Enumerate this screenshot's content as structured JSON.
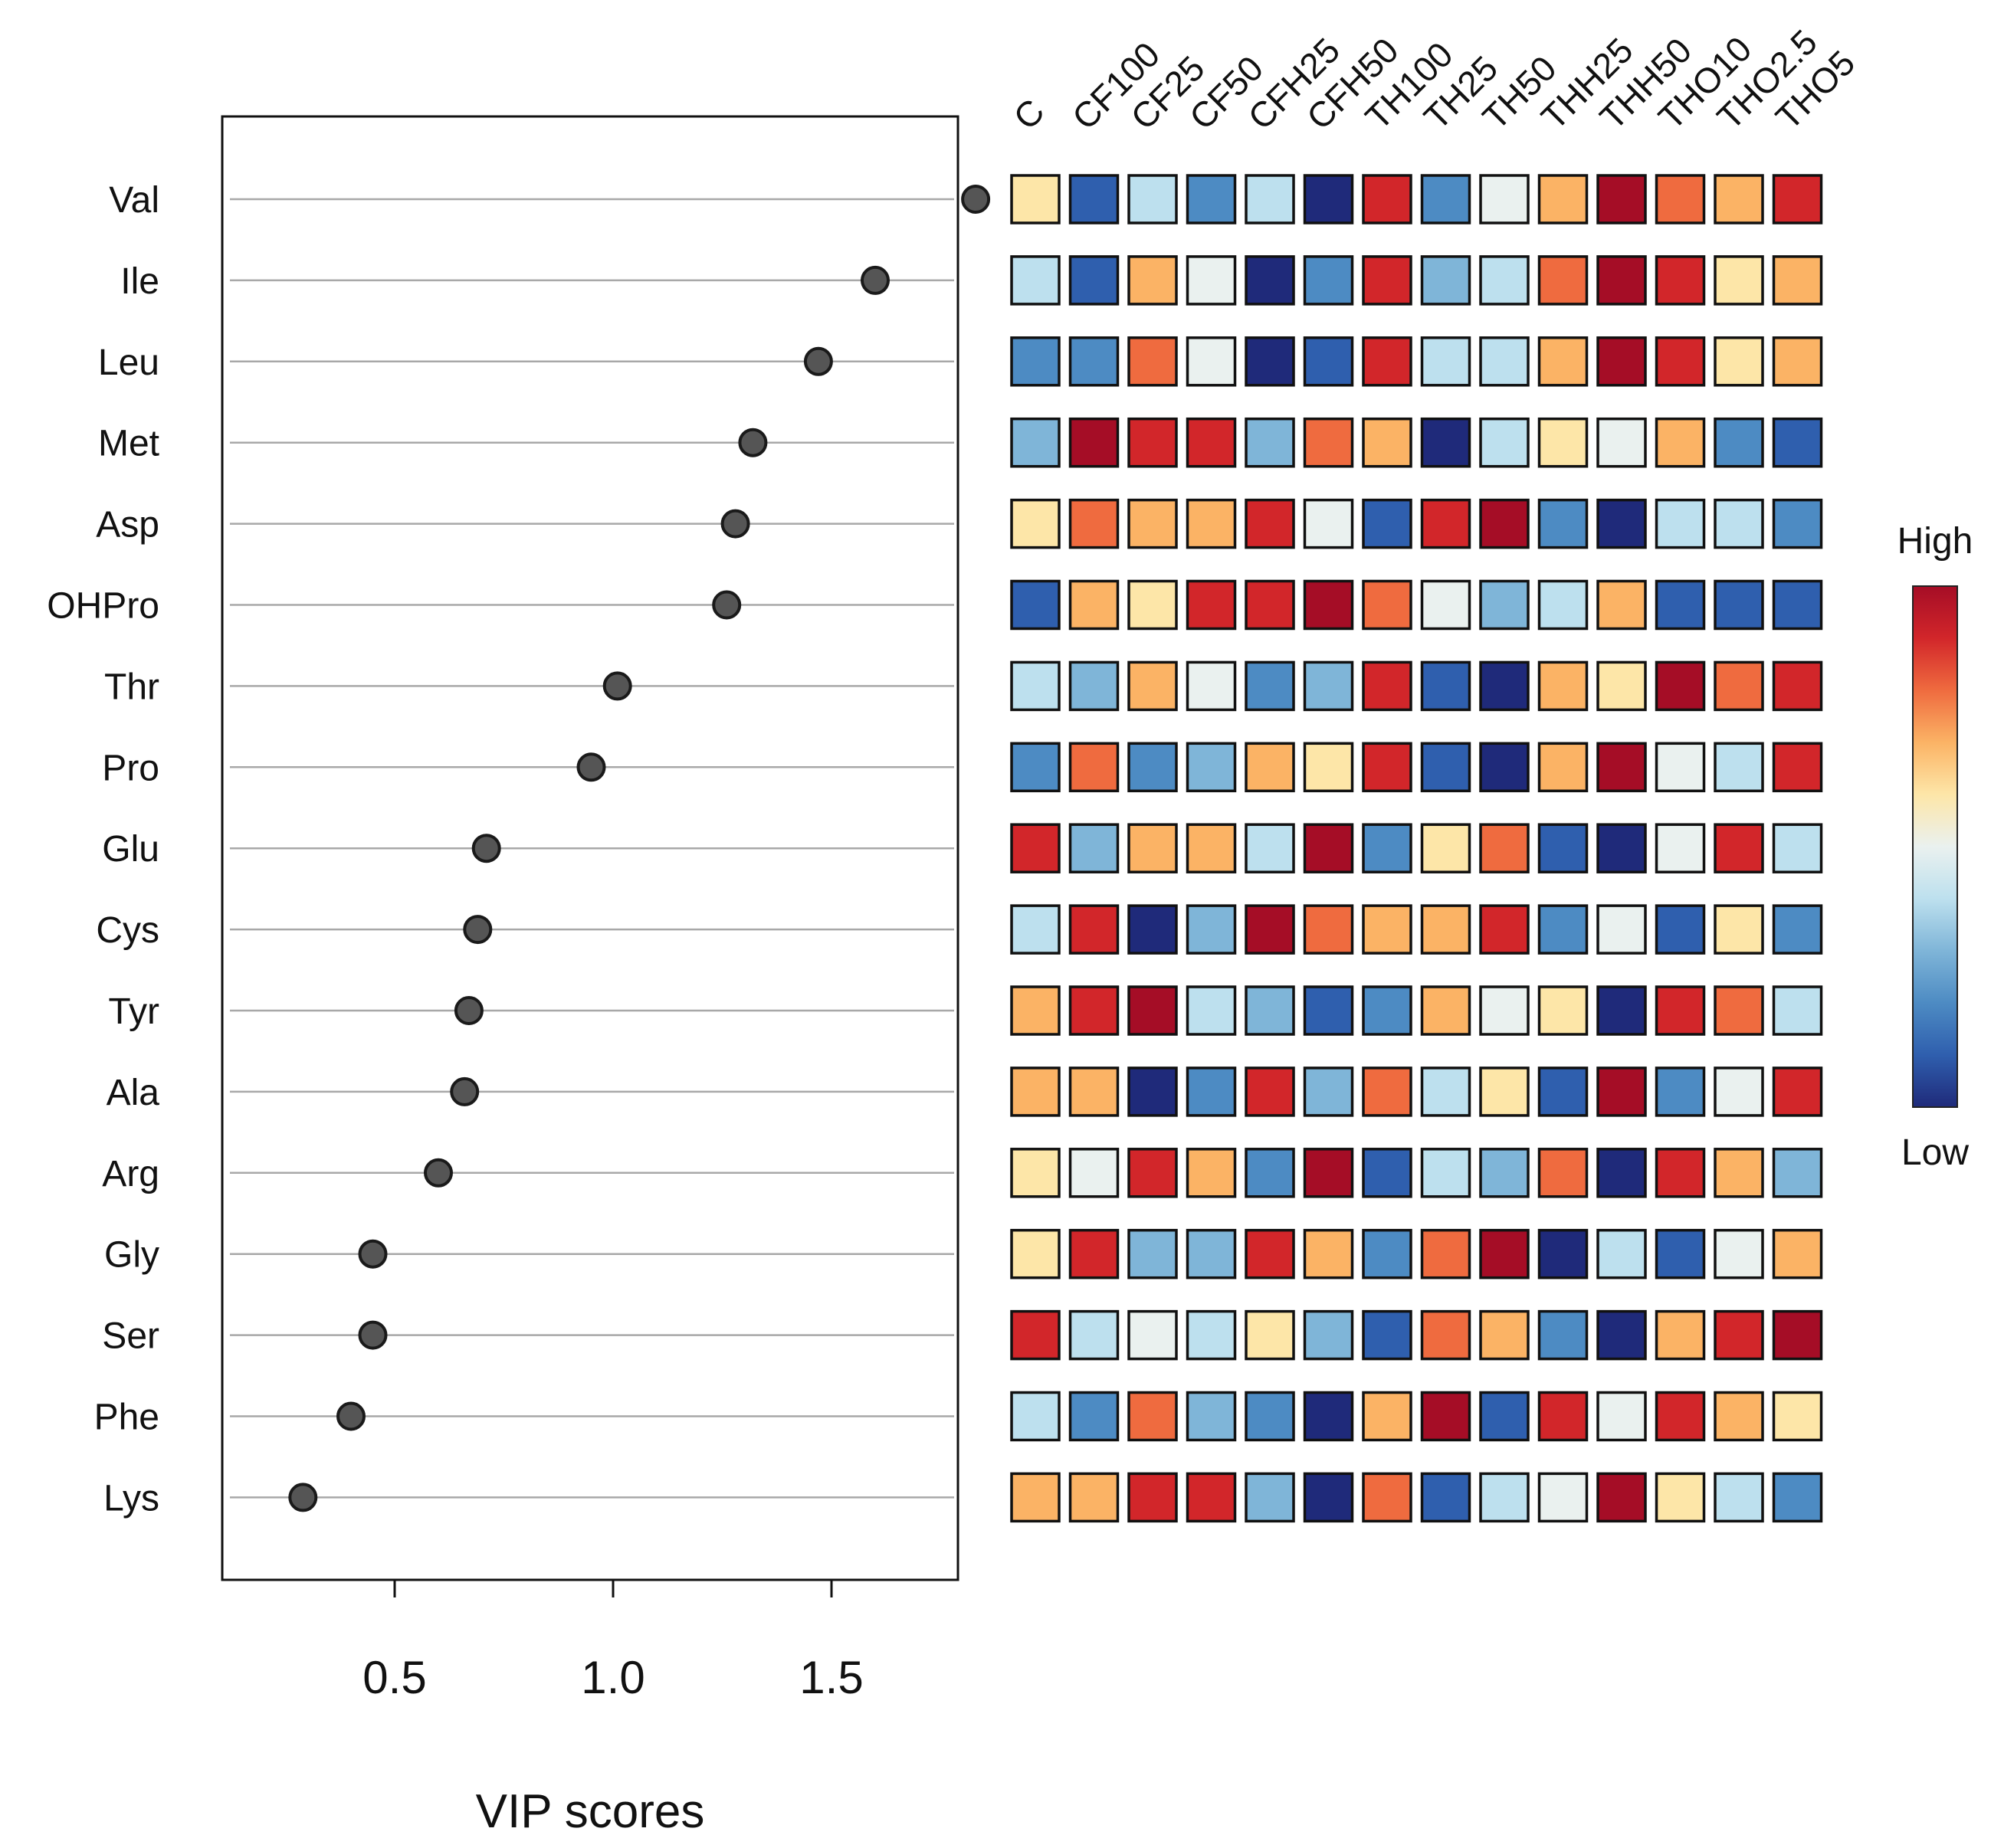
{
  "chart_data": [
    {
      "type": "scatter",
      "variant": "lollipop",
      "xlabel": "VIP scores",
      "xticks": [
        0.5,
        1.0,
        1.5
      ],
      "xtick_labels": [
        "0.5",
        "1.0",
        "1.5"
      ],
      "xlim": [
        0.22,
        1.87
      ],
      "grid": "horizontal reference line per row",
      "categories": [
        "Val",
        "Ile",
        "Leu",
        "Met",
        "Asp",
        "OHPro",
        "Thr",
        "Pro",
        "Glu",
        "Cys",
        "Tyr",
        "Ala",
        "Arg",
        "Gly",
        "Ser",
        "Phe",
        "Lys"
      ],
      "values": [
        1.83,
        1.6,
        1.47,
        1.32,
        1.28,
        1.26,
        1.01,
        0.95,
        0.71,
        0.69,
        0.67,
        0.66,
        0.6,
        0.45,
        0.45,
        0.4,
        0.29
      ]
    },
    {
      "type": "heatmap",
      "columns": [
        "C",
        "CF100",
        "CF25",
        "CF50",
        "CFH25",
        "CFH50",
        "TH100",
        "TH25",
        "TH50",
        "THH25",
        "THH50",
        "THO10",
        "THO2.5",
        "THO5"
      ],
      "rows": [
        "Val",
        "Ile",
        "Leu",
        "Met",
        "Asp",
        "OHPro",
        "Thr",
        "Pro",
        "Glu",
        "Cys",
        "Tyr",
        "Ala",
        "Arg",
        "Gly",
        "Ser",
        "Phe",
        "Lys"
      ],
      "scale": "relative level, 0 = lowest (dark blue) to 10 = highest (dark red), estimated from cell colour",
      "values": [
        [
          6,
          1,
          4,
          2,
          4,
          0,
          9,
          2,
          5,
          7,
          10,
          8,
          7,
          9
        ],
        [
          4,
          1,
          7,
          5,
          0,
          2,
          9,
          3,
          4,
          8,
          10,
          9,
          6,
          7
        ],
        [
          2,
          2,
          8,
          5,
          0,
          1,
          9,
          4,
          4,
          7,
          10,
          9,
          6,
          7
        ],
        [
          3,
          10,
          9,
          9,
          3,
          8,
          7,
          0,
          4,
          6,
          5,
          7,
          2,
          1
        ],
        [
          6,
          8,
          7,
          7,
          9,
          5,
          1,
          9,
          10,
          2,
          0,
          4,
          4,
          2
        ],
        [
          1,
          7,
          6,
          9,
          9,
          10,
          8,
          5,
          3,
          4,
          7,
          1,
          1,
          1
        ],
        [
          4,
          3,
          7,
          5,
          2,
          3,
          9,
          1,
          0,
          7,
          6,
          10,
          8,
          9
        ],
        [
          2,
          8,
          2,
          3,
          7,
          6,
          9,
          1,
          0,
          7,
          10,
          5,
          4,
          9
        ],
        [
          9,
          3,
          7,
          7,
          4,
          10,
          2,
          6,
          8,
          1,
          0,
          5,
          9,
          4
        ],
        [
          4,
          9,
          0,
          3,
          10,
          8,
          7,
          7,
          9,
          2,
          5,
          1,
          6,
          2
        ],
        [
          7,
          9,
          10,
          4,
          3,
          1,
          2,
          7,
          5,
          6,
          0,
          9,
          8,
          4
        ],
        [
          7,
          7,
          0,
          2,
          9,
          3,
          8,
          4,
          6,
          1,
          10,
          2,
          5,
          9
        ],
        [
          6,
          5,
          9,
          7,
          2,
          10,
          1,
          4,
          3,
          8,
          0,
          9,
          7,
          3
        ],
        [
          6,
          9,
          3,
          3,
          9,
          7,
          2,
          8,
          10,
          0,
          4,
          1,
          5,
          7
        ],
        [
          9,
          4,
          5,
          4,
          6,
          3,
          1,
          8,
          7,
          2,
          0,
          7,
          9,
          10
        ],
        [
          4,
          2,
          8,
          3,
          2,
          0,
          7,
          10,
          1,
          9,
          5,
          9,
          7,
          6
        ],
        [
          7,
          7,
          9,
          9,
          3,
          0,
          8,
          1,
          4,
          5,
          10,
          6,
          4,
          2
        ]
      ],
      "legend": {
        "high_label": "High",
        "low_label": "Low",
        "placement": "right"
      }
    }
  ],
  "colors": {
    "scale": [
      "#1f2a7a",
      "#2f5fae",
      "#4d8bc3",
      "#7fb5d8",
      "#bde0ee",
      "#eaf1ef",
      "#fde6a8",
      "#fbb365",
      "#ef6b3f",
      "#d2262a",
      "#a50d26"
    ],
    "dot_fill": "#555555",
    "row_line": "#a8a8a8"
  }
}
